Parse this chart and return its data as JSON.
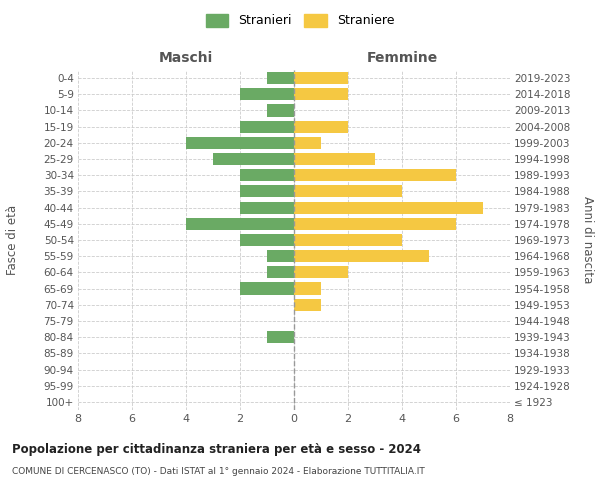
{
  "age_groups": [
    "100+",
    "95-99",
    "90-94",
    "85-89",
    "80-84",
    "75-79",
    "70-74",
    "65-69",
    "60-64",
    "55-59",
    "50-54",
    "45-49",
    "40-44",
    "35-39",
    "30-34",
    "25-29",
    "20-24",
    "15-19",
    "10-14",
    "5-9",
    "0-4"
  ],
  "birth_years": [
    "≤ 1923",
    "1924-1928",
    "1929-1933",
    "1934-1938",
    "1939-1943",
    "1944-1948",
    "1949-1953",
    "1954-1958",
    "1959-1963",
    "1964-1968",
    "1969-1973",
    "1974-1978",
    "1979-1983",
    "1984-1988",
    "1989-1993",
    "1994-1998",
    "1999-2003",
    "2004-2008",
    "2009-2013",
    "2014-2018",
    "2019-2023"
  ],
  "maschi": [
    0,
    0,
    0,
    0,
    1,
    0,
    0,
    2,
    1,
    1,
    2,
    4,
    2,
    2,
    2,
    3,
    4,
    2,
    1,
    2,
    1
  ],
  "femmine": [
    0,
    0,
    0,
    0,
    0,
    0,
    1,
    1,
    2,
    5,
    4,
    6,
    7,
    4,
    6,
    3,
    1,
    2,
    0,
    2,
    2
  ],
  "maschi_color": "#6aaa64",
  "femmine_color": "#f5c842",
  "title1": "Popolazione per cittadinanza straniera per età e sesso - 2024",
  "title2": "COMUNE DI CERCENASCO (TO) - Dati ISTAT al 1° gennaio 2024 - Elaborazione TUTTITALIA.IT",
  "xlabel_left": "Maschi",
  "xlabel_right": "Femmine",
  "ylabel_left": "Fasce di età",
  "ylabel_right": "Anni di nascita",
  "legend_stranieri": "Stranieri",
  "legend_straniere": "Straniere",
  "xlim": 8,
  "background_color": "#ffffff",
  "grid_color": "#cccccc"
}
